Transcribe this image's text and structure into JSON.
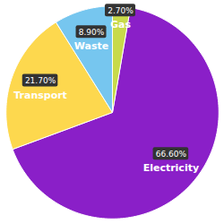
{
  "chart_data": {
    "type": "pie",
    "categories": [
      "Electricity",
      "Transport",
      "Waste",
      "Gas"
    ],
    "values": [
      66.6,
      21.7,
      8.9,
      2.7
    ],
    "value_labels": [
      "66.60%",
      "21.70%",
      "8.90%",
      "2.70%"
    ],
    "colors": [
      "#8a1fc8",
      "#fdd84e",
      "#76c6ef",
      "#c8da4a"
    ],
    "data_labels": true,
    "legend": false,
    "tick_labels": false
  }
}
